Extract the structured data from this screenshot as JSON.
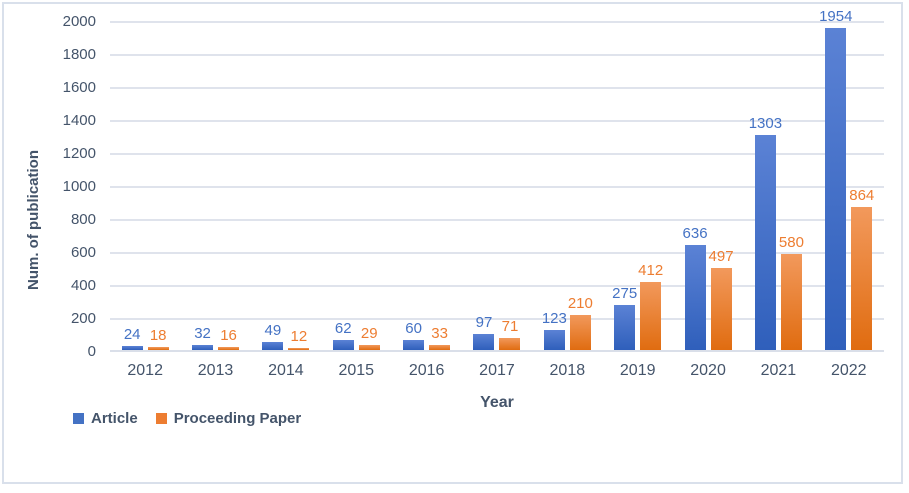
{
  "chart_data": {
    "type": "bar",
    "title": "",
    "categories": [
      "2012",
      "2013",
      "2014",
      "2015",
      "2016",
      "2017",
      "2018",
      "2019",
      "2020",
      "2021",
      "2022"
    ],
    "series": [
      {
        "name": "Article",
        "color": "#4472c4",
        "gradient_top": "#5b82d5",
        "gradient_bottom": "#2f5fbb",
        "values": [
          24,
          32,
          49,
          62,
          60,
          97,
          123,
          275,
          636,
          1303,
          1954
        ]
      },
      {
        "name": "Proceeding Paper",
        "color": "#ed7d31",
        "gradient_top": "#f2995c",
        "gradient_bottom": "#e06c10",
        "values": [
          18,
          16,
          12,
          29,
          33,
          71,
          210,
          412,
          497,
          580,
          864
        ]
      }
    ],
    "xlabel": "Year",
    "ylabel": "Num. of publication",
    "ylim": [
      0,
      2000
    ],
    "ytick_step": 200,
    "yticks": [
      0,
      200,
      400,
      600,
      800,
      1000,
      1200,
      1400,
      1600,
      1800,
      2000
    ],
    "grid": true,
    "data_labels": true,
    "legend_position": "bottom-left",
    "colors": {
      "text": "#44546a",
      "gridline": "#dfe3ec",
      "axis_line": "#dadfe9",
      "frame_border": "#d9e0eb",
      "background": "#ffffff"
    }
  }
}
